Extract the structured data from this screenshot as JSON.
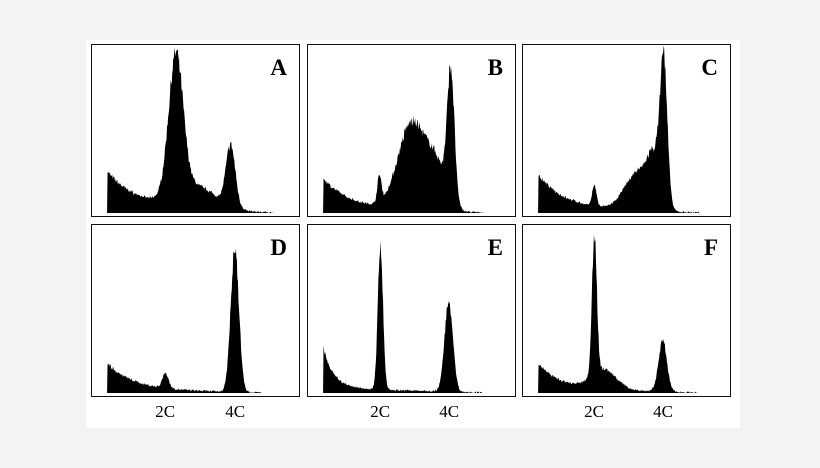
{
  "chart_data": [
    {
      "type": "area",
      "panel": "A",
      "xlim": [
        0,
        200
      ],
      "ylim": [
        0,
        100
      ],
      "grid": false,
      "components": [
        {
          "kind": "debris",
          "start": 15,
          "height": 22,
          "decay": 30,
          "floor": 3
        },
        {
          "kind": "peak",
          "position": 81,
          "height": 84,
          "width": 7
        },
        {
          "kind": "peak",
          "position": 100,
          "height": 14,
          "width": 20
        },
        {
          "kind": "peak",
          "position": 134,
          "height": 37,
          "width": 4.5
        }
      ]
    },
    {
      "type": "area",
      "panel": "B",
      "xlim": [
        0,
        200
      ],
      "ylim": [
        0,
        100
      ],
      "grid": false,
      "components": [
        {
          "kind": "debris",
          "start": 15,
          "height": 18,
          "decay": 25,
          "floor": 3
        },
        {
          "kind": "peak",
          "position": 69,
          "height": 16,
          "width": 2
        },
        {
          "kind": "peak",
          "position": 100,
          "height": 52,
          "width": 13
        },
        {
          "kind": "peak",
          "position": 124,
          "height": 25,
          "width": 10
        },
        {
          "kind": "peak",
          "position": 138,
          "height": 78,
          "width": 3.5
        }
      ]
    },
    {
      "type": "area",
      "panel": "C",
      "xlim": [
        0,
        200
      ],
      "ylim": [
        0,
        100
      ],
      "grid": false,
      "components": [
        {
          "kind": "debris",
          "start": 15,
          "height": 20,
          "decay": 25,
          "floor": 3
        },
        {
          "kind": "peak",
          "position": 69,
          "height": 13,
          "width": 2
        },
        {
          "kind": "peak",
          "position": 110,
          "height": 22,
          "width": 12
        },
        {
          "kind": "peak",
          "position": 127,
          "height": 28,
          "width": 7
        },
        {
          "kind": "peak",
          "position": 136,
          "height": 82,
          "width": 3.5
        }
      ]
    },
    {
      "type": "area",
      "panel": "D",
      "xlim": [
        0,
        200
      ],
      "ylim": [
        0,
        100
      ],
      "grid": false,
      "components": [
        {
          "kind": "debris",
          "start": 15,
          "height": 16,
          "decay": 25,
          "floor": 2
        },
        {
          "kind": "peak",
          "position": 71,
          "height": 9,
          "width": 3
        },
        {
          "kind": "peak",
          "position": 138,
          "height": 86,
          "width": 4
        }
      ],
      "x_ticks": [
        {
          "label": "2C",
          "position": 71
        },
        {
          "label": "4C",
          "position": 138
        }
      ]
    },
    {
      "type": "area",
      "panel": "E",
      "xlim": [
        0,
        200
      ],
      "ylim": [
        0,
        100
      ],
      "grid": false,
      "components": [
        {
          "kind": "debris",
          "start": 15,
          "height": 24,
          "decay": 10,
          "floor": 3
        },
        {
          "kind": "peak",
          "position": 70,
          "height": 87,
          "width": 2.5
        },
        {
          "kind": "peak",
          "position": 136,
          "height": 55,
          "width": 4
        }
      ],
      "x_ticks": [
        {
          "label": "2C",
          "position": 70
        },
        {
          "label": "4C",
          "position": 136
        }
      ]
    },
    {
      "type": "area",
      "panel": "F",
      "xlim": [
        0,
        200
      ],
      "ylim": [
        0,
        100
      ],
      "grid": false,
      "components": [
        {
          "kind": "debris",
          "start": 15,
          "height": 15,
          "decay": 20,
          "floor": 3
        },
        {
          "kind": "peak",
          "position": 69,
          "height": 86,
          "width": 2.3
        },
        {
          "kind": "peak",
          "position": 78,
          "height": 12,
          "width": 12
        },
        {
          "kind": "peak",
          "position": 135,
          "height": 31,
          "width": 4
        }
      ],
      "x_ticks": [
        {
          "label": "2C",
          "position": 69
        },
        {
          "label": "4C",
          "position": 135
        }
      ]
    }
  ],
  "colors": {
    "fill": "#000000",
    "background": "#ffffff",
    "page": "#f3f3f3"
  }
}
